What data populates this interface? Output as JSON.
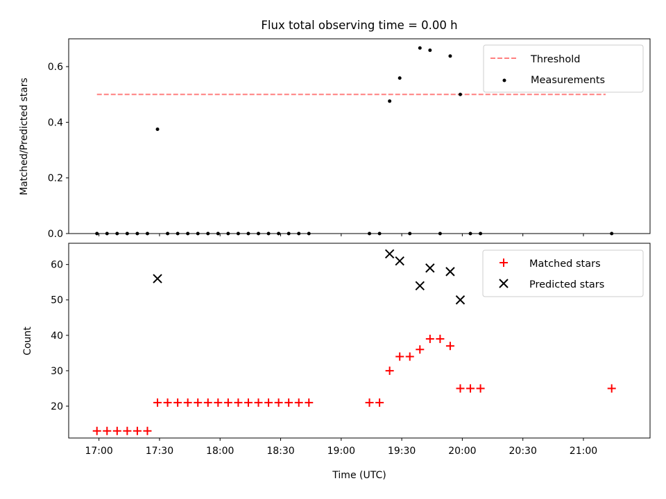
{
  "chart_data": [
    {
      "type": "scatter",
      "title": "Flux total observing time = 0.00 h",
      "xlabel": "",
      "ylabel": "Matched/Predicted stars",
      "ylim": [
        0,
        0.7
      ],
      "yticks": [
        0.0,
        0.2,
        0.4,
        0.6
      ],
      "ytick_labels": [
        "0.0",
        "0.2",
        "0.4",
        "0.6"
      ],
      "grid": false,
      "legend": "top-right",
      "threshold": {
        "name": "Threshold",
        "value": 0.5,
        "x_start": "16:59",
        "x_end": "21:11",
        "color": "#ff7f7f"
      },
      "series": [
        {
          "name": "Measurements",
          "color": "#000000",
          "x": [
            "16:59",
            "17:04",
            "17:09",
            "17:14",
            "17:19",
            "17:24",
            "17:29",
            "17:34",
            "17:39",
            "17:44",
            "17:49",
            "17:54",
            "17:59",
            "18:04",
            "18:09",
            "18:14",
            "18:19",
            "18:24",
            "18:29",
            "18:34",
            "18:39",
            "18:44",
            "19:14",
            "19:19",
            "19:24",
            "19:29",
            "19:34",
            "19:39",
            "19:44",
            "19:49",
            "19:54",
            "19:59",
            "20:04",
            "20:09",
            "21:14"
          ],
          "y": [
            0,
            0,
            0,
            0,
            0,
            0,
            0.375,
            0,
            0,
            0,
            0,
            0,
            0,
            0,
            0,
            0,
            0,
            0,
            0,
            0,
            0,
            0,
            0,
            0,
            0.476,
            0.559,
            0,
            0.667,
            0.659,
            0,
            0.638,
            0.5,
            0,
            0,
            0
          ]
        }
      ]
    },
    {
      "type": "scatter",
      "title": "",
      "xlabel": "Time (UTC)",
      "ylabel": "Count",
      "ylim": [
        11,
        66
      ],
      "yticks": [
        20,
        30,
        40,
        50,
        60
      ],
      "ytick_labels": [
        "20",
        "30",
        "40",
        "50",
        "60"
      ],
      "xlim": [
        "16:45",
        "21:33"
      ],
      "xticks": [
        "17:00",
        "17:30",
        "18:00",
        "18:30",
        "19:00",
        "19:30",
        "20:00",
        "20:30",
        "21:00"
      ],
      "xtick_labels": [
        "17:00",
        "17:30",
        "18:00",
        "18:30",
        "19:00",
        "19:30",
        "20:00",
        "20:30",
        "21:00"
      ],
      "grid": false,
      "legend": "top-right",
      "series": [
        {
          "name": "Matched stars",
          "marker": "+",
          "color": "#ff0000",
          "x": [
            "16:59",
            "17:04",
            "17:09",
            "17:14",
            "17:19",
            "17:24",
            "17:29",
            "17:34",
            "17:39",
            "17:44",
            "17:49",
            "17:54",
            "17:59",
            "18:04",
            "18:09",
            "18:14",
            "18:19",
            "18:24",
            "18:29",
            "18:34",
            "18:39",
            "18:44",
            "19:14",
            "19:19",
            "19:24",
            "19:29",
            "19:34",
            "19:39",
            "19:44",
            "19:49",
            "19:54",
            "19:59",
            "20:04",
            "20:09",
            "21:14"
          ],
          "y": [
            13,
            13,
            13,
            13,
            13,
            13,
            21,
            21,
            21,
            21,
            21,
            21,
            21,
            21,
            21,
            21,
            21,
            21,
            21,
            21,
            21,
            21,
            21,
            21,
            30,
            34,
            34,
            36,
            39,
            39,
            37,
            25,
            25,
            25,
            25
          ]
        },
        {
          "name": "Predicted stars",
          "marker": "x",
          "color": "#000000",
          "x": [
            "17:29",
            "19:24",
            "19:29",
            "19:39",
            "19:44",
            "19:54",
            "19:59"
          ],
          "y": [
            56,
            63,
            61,
            54,
            59,
            58,
            50
          ]
        }
      ]
    }
  ]
}
